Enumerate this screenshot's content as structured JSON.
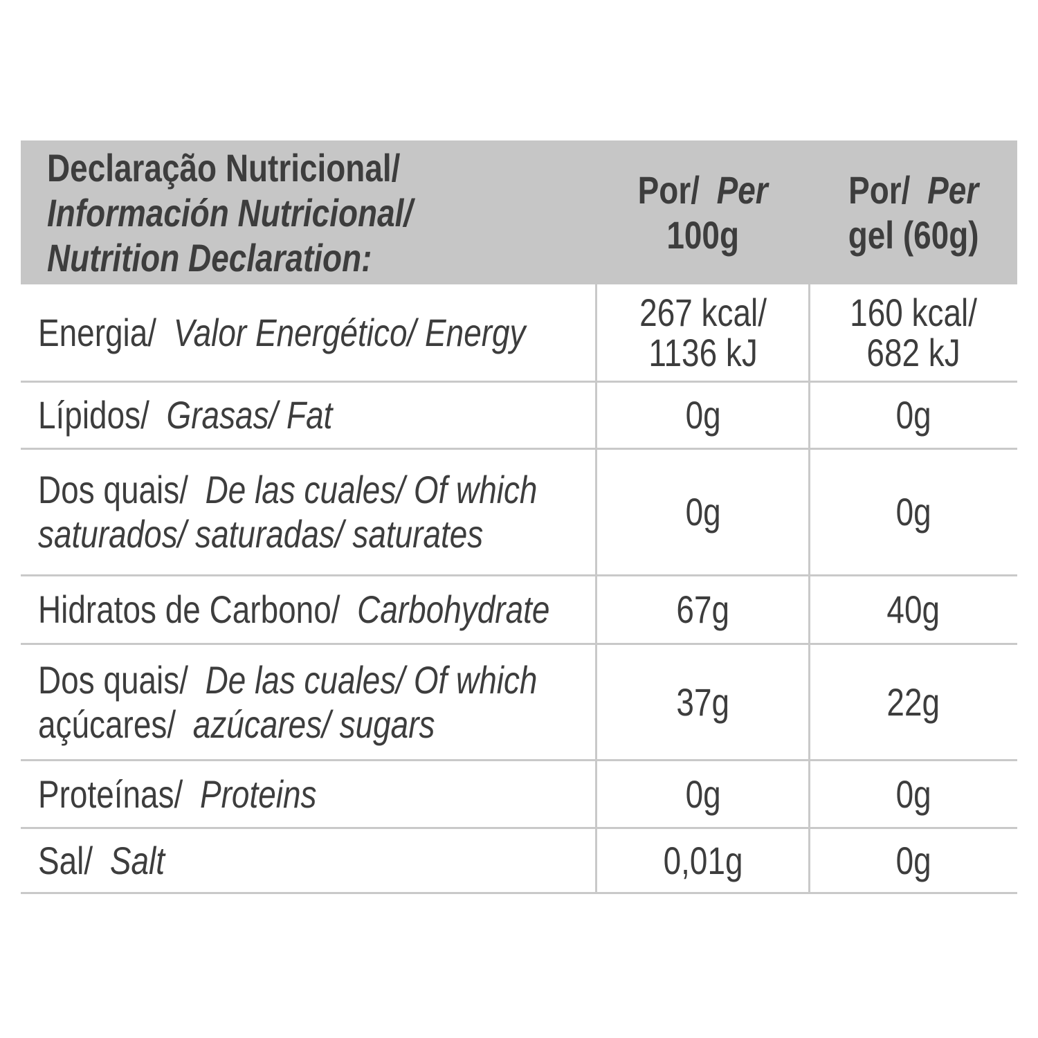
{
  "colors": {
    "header_bg": "#c6c6c6",
    "grid_border": "#c9c9c9",
    "text": "#3d3d3d",
    "page_bg": "#ffffff"
  },
  "table": {
    "header": {
      "title_pt": "Declaração Nutricional/",
      "title_es": "Información Nutricional/",
      "title_en": "Nutrition Declaration:",
      "per_100g": {
        "prefix": "Por/",
        "prefix_italic": "Per",
        "amount": "100g"
      },
      "per_gel": {
        "prefix": "Por/",
        "prefix_italic": "Per",
        "amount": "gel (60g)"
      }
    },
    "rows": [
      {
        "id": "energy",
        "label": {
          "upright": "Energia/",
          "italic": "Valor Energético/ Energy"
        },
        "per100g_line1": "267 kcal/",
        "per100g_line2": "1136 kJ",
        "pergel_line1": "160 kcal/",
        "pergel_line2": "682 kJ"
      },
      {
        "id": "fat",
        "label": {
          "upright": "Lípidos/",
          "italic": "Grasas/ Fat"
        },
        "per100g": "0g",
        "pergel": "0g"
      },
      {
        "id": "saturates",
        "label": {
          "upright": "Dos quais/",
          "italic": "De las cuales/ Of which",
          "line2_italic": "saturados/ saturadas/ saturates"
        },
        "per100g": "0g",
        "pergel": "0g"
      },
      {
        "id": "carbohydrate",
        "label": {
          "upright": "Hidratos de Carbono/",
          "italic": "Carbohydrate"
        },
        "per100g": "67g",
        "pergel": "40g"
      },
      {
        "id": "sugars",
        "label": {
          "upright": "Dos quais/",
          "italic": "De las cuales/ Of which",
          "line2_upright": "açúcares/",
          "line2_italic": "azúcares/ sugars"
        },
        "per100g": "37g",
        "pergel": "22g"
      },
      {
        "id": "protein",
        "label": {
          "upright": "Proteínas/",
          "italic": "Proteins"
        },
        "per100g": "0g",
        "pergel": "0g"
      },
      {
        "id": "salt",
        "label": {
          "upright": "Sal/",
          "italic": "Salt"
        },
        "per100g": "0,01g",
        "pergel": "0g"
      }
    ]
  }
}
